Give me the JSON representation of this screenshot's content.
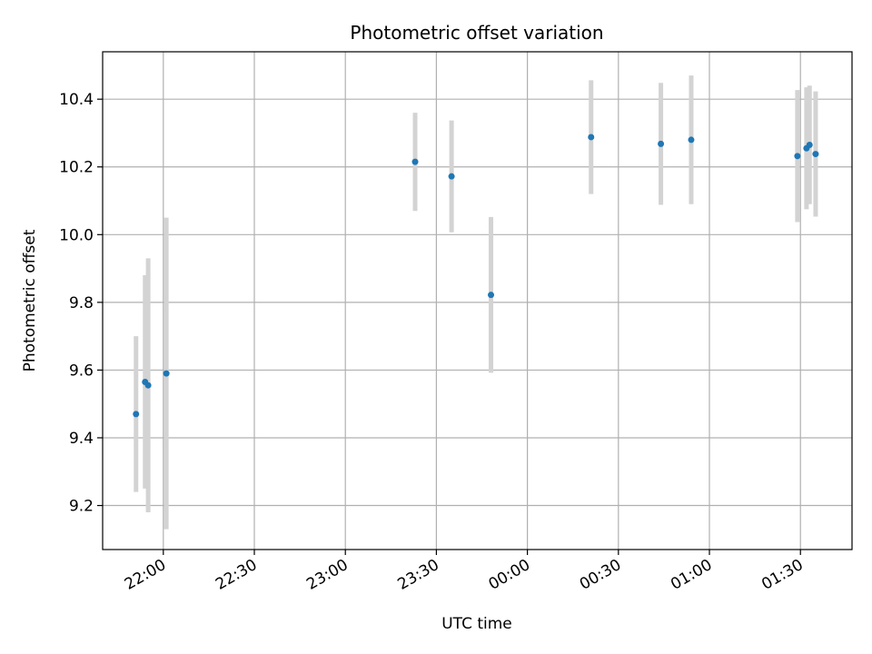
{
  "chart_data": {
    "type": "scatter",
    "title": "Photometric offset variation",
    "xlabel": "UTC time",
    "ylabel": "Photometric offset",
    "x_axis_kind": "time",
    "x_start_reference": "21:40",
    "xlim": [
      "21:40",
      "01:47"
    ],
    "ylim": [
      9.07,
      10.54
    ],
    "x_ticks": [
      "22:00",
      "22:30",
      "23:00",
      "23:30",
      "00:00",
      "00:30",
      "01:00",
      "01:30"
    ],
    "y_ticks": [
      "9.2",
      "9.4",
      "9.6",
      "9.8",
      "10.0",
      "10.2",
      "10.4"
    ],
    "grid": true,
    "point_color": "#1f77b4",
    "errorbar_color": "#d3d3d3",
    "points": [
      {
        "time": "21:51",
        "y": 9.47,
        "yerr": 0.23
      },
      {
        "time": "21:54",
        "y": 9.565,
        "yerr": 0.315
      },
      {
        "time": "21:55",
        "y": 9.555,
        "yerr": 0.375
      },
      {
        "time": "22:01",
        "y": 9.59,
        "yerr": 0.46
      },
      {
        "time": "23:23",
        "y": 10.215,
        "yerr": 0.145
      },
      {
        "time": "23:35",
        "y": 10.172,
        "yerr": 0.165
      },
      {
        "time": "23:48",
        "y": 9.822,
        "yerr": 0.23
      },
      {
        "time": "00:21",
        "y": 10.288,
        "yerr": 0.168
      },
      {
        "time": "00:44",
        "y": 10.268,
        "yerr": 0.18
      },
      {
        "time": "00:54",
        "y": 10.28,
        "yerr": 0.19
      },
      {
        "time": "01:29",
        "y": 10.232,
        "yerr": 0.195
      },
      {
        "time": "01:32",
        "y": 10.255,
        "yerr": 0.18
      },
      {
        "time": "01:33",
        "y": 10.265,
        "yerr": 0.175
      },
      {
        "time": "01:35",
        "y": 10.238,
        "yerr": 0.185
      }
    ]
  }
}
